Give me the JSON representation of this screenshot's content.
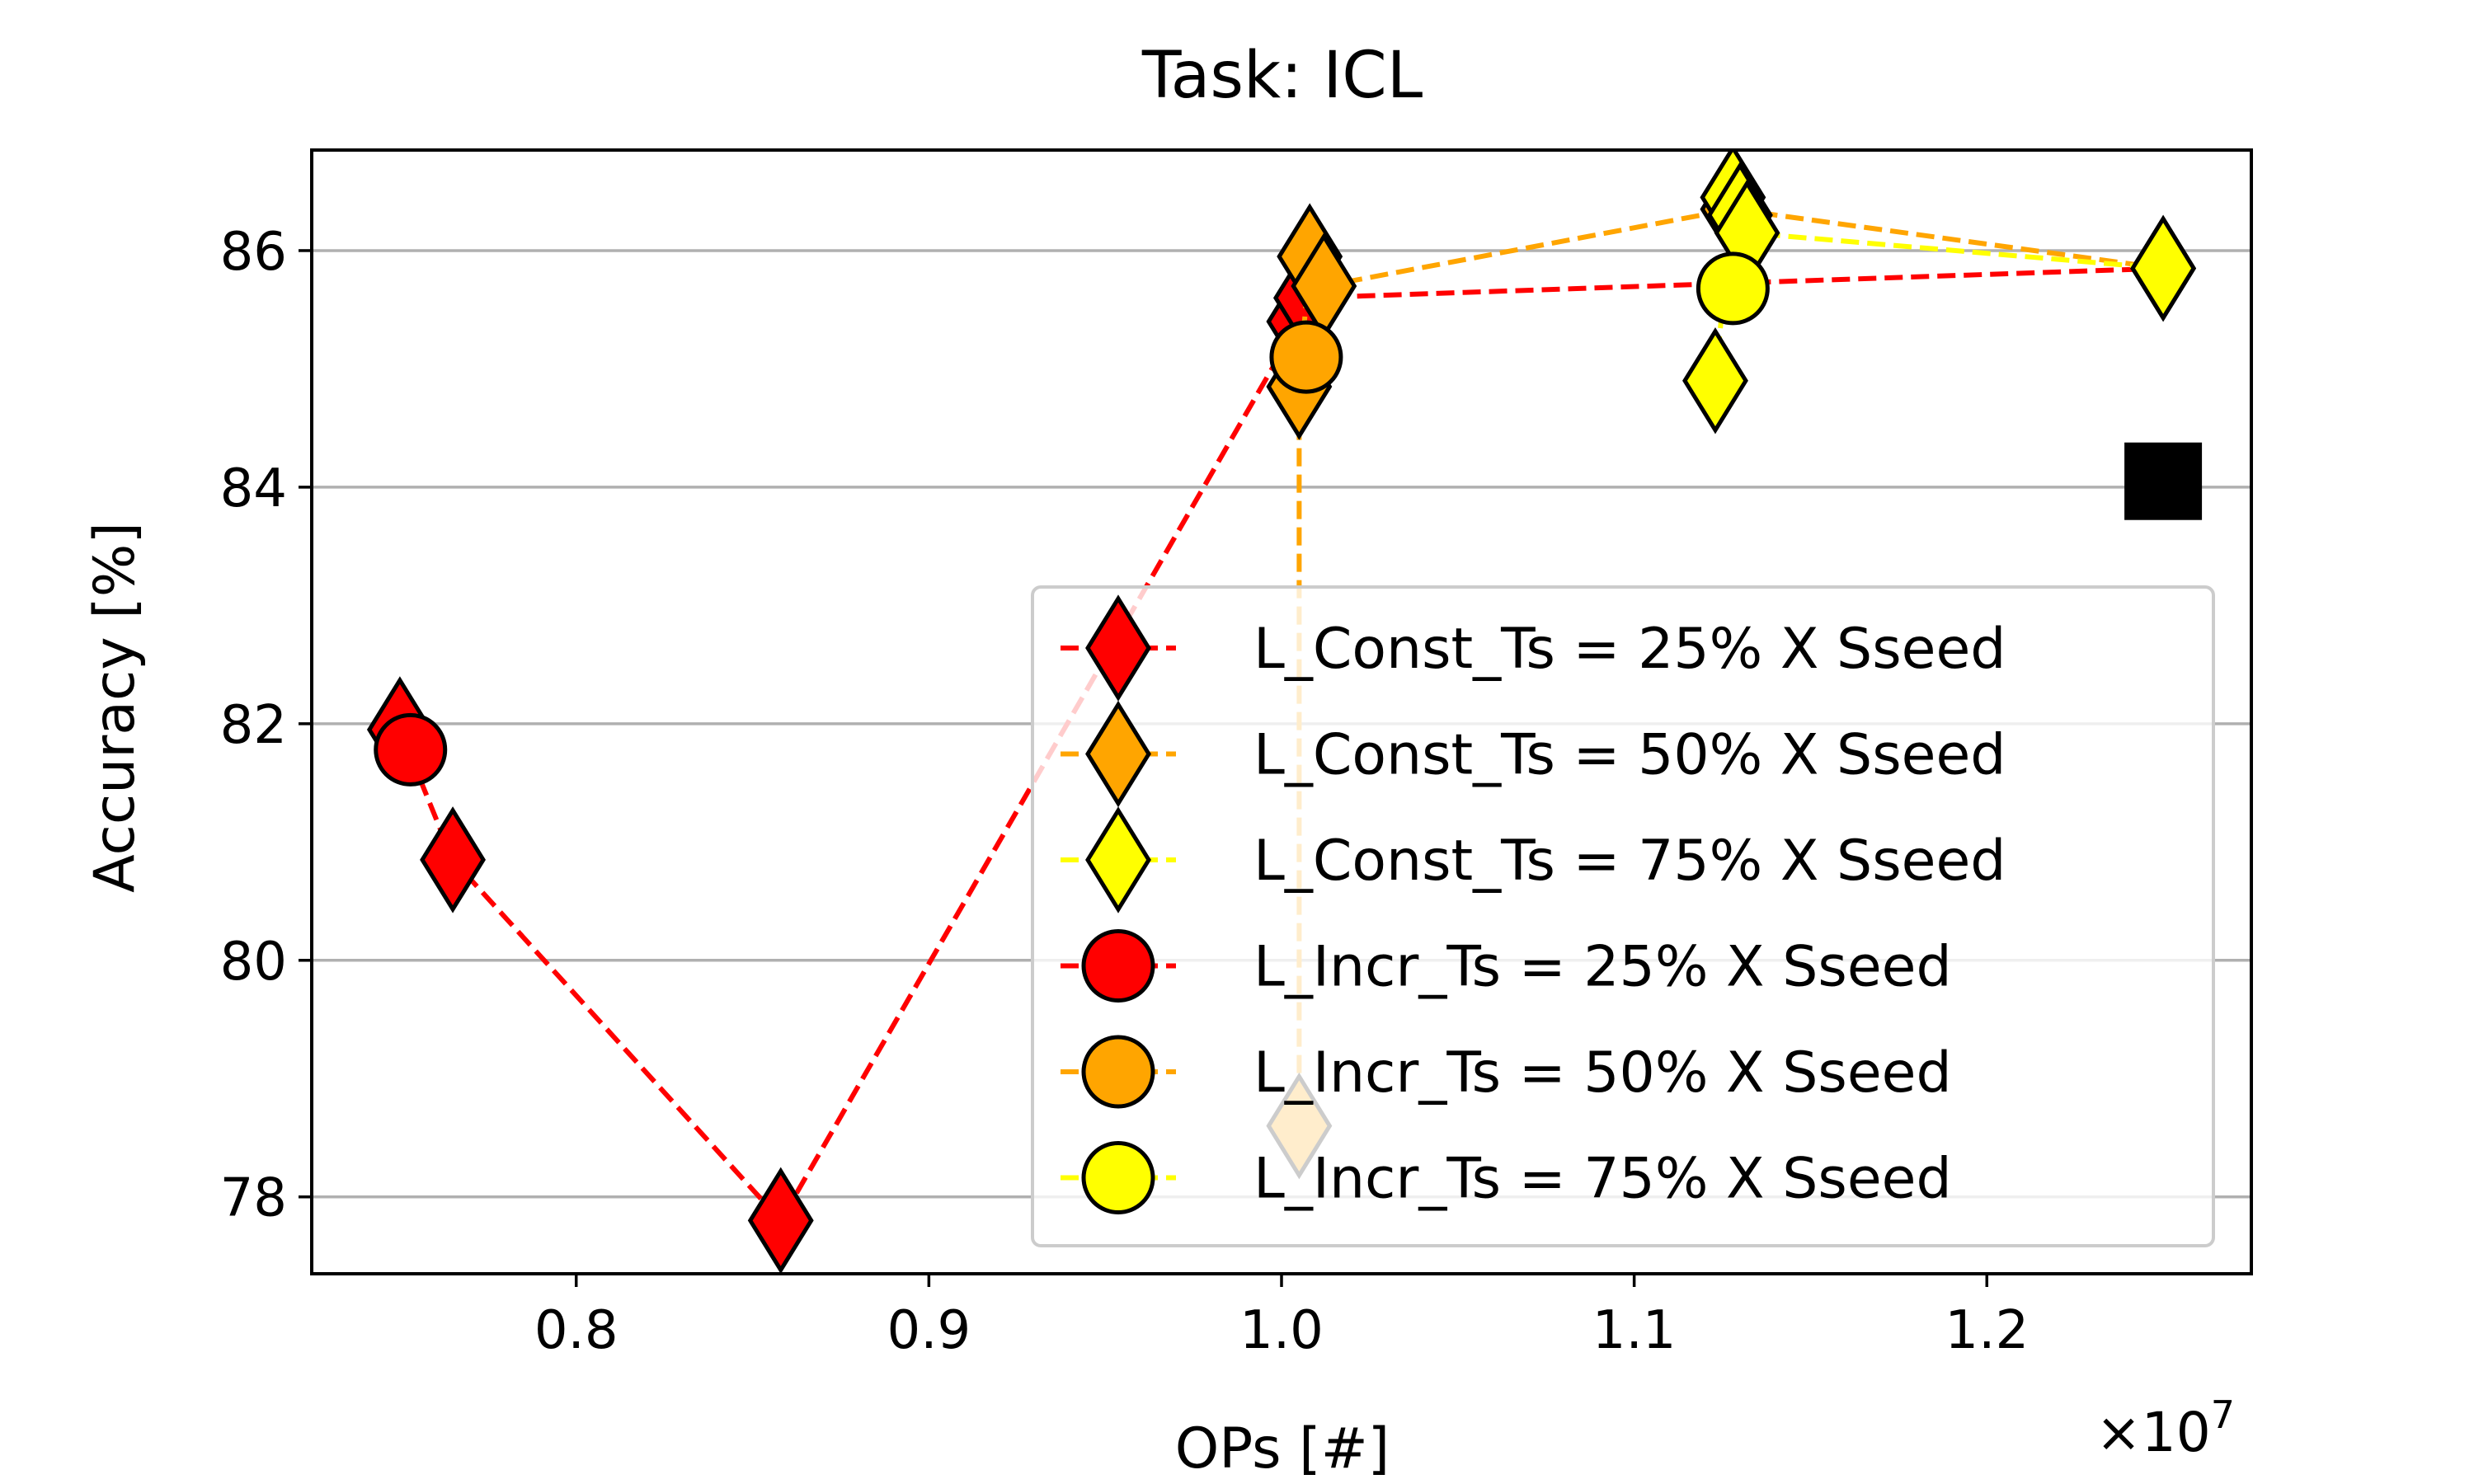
{
  "chart_data": {
    "type": "scatter",
    "title": "Task: ICL",
    "xlabel": "OPs [#]",
    "ylabel": "Accuracy [%]",
    "x_multiplier_label": "×10",
    "x_multiplier_exponent": "7",
    "xlim": [
      7.25,
      12.75
    ],
    "ylim": [
      77.35,
      86.85
    ],
    "x_scale_factor": 1000000,
    "xticks": [
      8,
      9,
      10,
      11,
      12
    ],
    "xtick_labels": [
      "0.8",
      "0.9",
      "1.0",
      "1.1",
      "1.2"
    ],
    "yticks": [
      78,
      80,
      82,
      84,
      86
    ],
    "ytick_labels": [
      "78",
      "80",
      "82",
      "84",
      "86"
    ],
    "grid": "y",
    "legend_position": "center-right",
    "colors": {
      "red": "#ff0000",
      "orange": "#ffa500",
      "yellow": "#ffff00",
      "black": "#000000"
    },
    "series": [
      {
        "name": "L_Const_Ts = 25% X Sseed",
        "marker": "diamond",
        "color": "#ff0000",
        "linestyle": "dashed",
        "x": [
          7.5,
          7.65,
          8.58,
          10.05,
          10.07,
          12.5
        ],
        "y": [
          81.95,
          80.85,
          77.8,
          85.4,
          85.6,
          85.85
        ]
      },
      {
        "name": "L_Const_Ts = 50% X Sseed",
        "marker": "diamond",
        "color": "#ffa500",
        "linestyle": "dashed",
        "x": [
          10.05,
          10.05,
          10.08,
          10.12,
          11.28,
          12.5
        ],
        "y": [
          78.6,
          84.85,
          85.95,
          85.7,
          86.35,
          85.85
        ]
      },
      {
        "name": "L_Const_Ts = 75% X Sseed",
        "marker": "diamond",
        "color": "#ffff00",
        "linestyle": "dashed",
        "x": [
          11.23,
          11.28,
          11.3,
          11.32,
          12.5
        ],
        "y": [
          84.9,
          86.45,
          86.3,
          86.15,
          85.85
        ]
      },
      {
        "name": "L_Incr_Ts = 25% X Sseed",
        "marker": "circle",
        "color": "#ff0000",
        "linestyle": "dashed",
        "x": [
          7.53
        ],
        "y": [
          81.78
        ]
      },
      {
        "name": "L_Incr_Ts = 50% X Sseed",
        "marker": "circle",
        "color": "#ffa500",
        "linestyle": "dashed",
        "x": [
          10.07
        ],
        "y": [
          85.1
        ]
      },
      {
        "name": "L_Incr_Ts = 75% X Sseed",
        "marker": "circle",
        "color": "#ffff00",
        "linestyle": "dashed",
        "x": [
          11.28
        ],
        "y": [
          85.68
        ]
      }
    ],
    "extra_marker": {
      "marker": "square",
      "color": "#000000",
      "x": 12.5,
      "y": 84.05
    }
  }
}
